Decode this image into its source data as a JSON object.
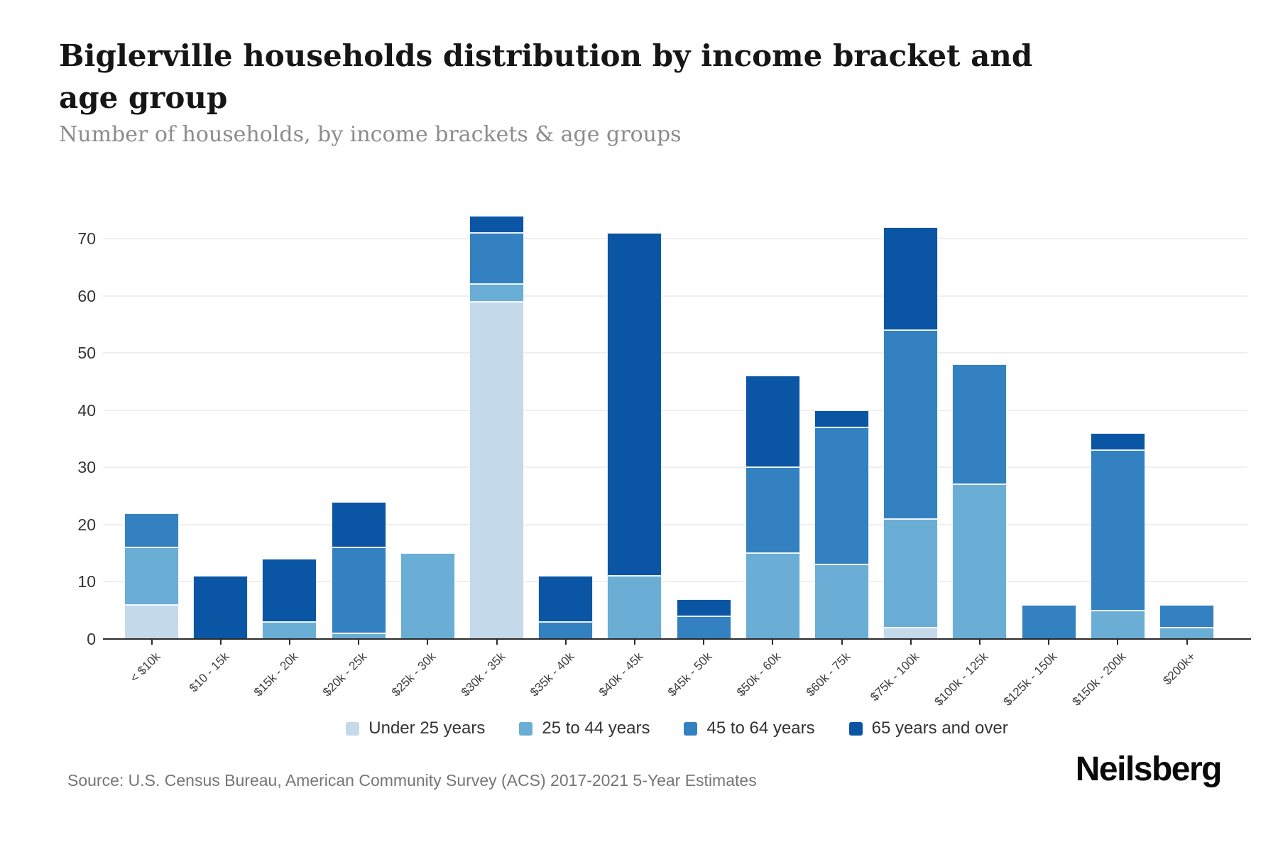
{
  "header": {
    "title": "Biglerville households distribution by income bracket and age group",
    "subtitle": "Number of households, by income brackets & age groups"
  },
  "chart_data": {
    "type": "bar",
    "stacked": true,
    "title": "Biglerville households distribution by income bracket and age group",
    "subtitle": "Number of households, by income brackets & age groups",
    "categories": [
      "< $10k",
      "$10 - 15k",
      "$15k - 20k",
      "$20k - 25k",
      "$25k - 30k",
      "$30k - 35k",
      "$35k - 40k",
      "$40k - 45k",
      "$45k - 50k",
      "$50k - 60k",
      "$60k - 75k",
      "$75k - 100k",
      "$100k - 125k",
      "$125k - 150k",
      "$150k - 200k",
      "$200k+"
    ],
    "series": [
      {
        "name": "Under 25 years",
        "color": "#c4d9e9",
        "values": [
          6,
          0,
          0,
          0,
          0,
          59,
          0,
          0,
          0,
          0,
          0,
          2,
          0,
          0,
          0,
          0
        ]
      },
      {
        "name": "25 to 44 years",
        "color": "#6aaed6",
        "values": [
          10,
          0,
          3,
          1,
          15,
          3,
          0,
          11,
          0,
          15,
          13,
          19,
          27,
          0,
          5,
          2
        ]
      },
      {
        "name": "45 to 64 years",
        "color": "#3381c1",
        "values": [
          6,
          0,
          0,
          15,
          0,
          9,
          3,
          0,
          4,
          15,
          24,
          33,
          21,
          6,
          28,
          4
        ]
      },
      {
        "name": "65 years and over",
        "color": "#0b56a4",
        "values": [
          0,
          11,
          11,
          8,
          0,
          3,
          8,
          60,
          3,
          16,
          3,
          18,
          0,
          0,
          3,
          0
        ]
      }
    ],
    "totals": [
      22,
      11,
      14,
      24,
      15,
      74,
      11,
      71,
      7,
      46,
      40,
      72,
      48,
      6,
      36,
      6
    ],
    "xlabel": "",
    "ylabel": "",
    "yticks": [
      0,
      10,
      20,
      30,
      40,
      50,
      60,
      70
    ],
    "ylim": [
      0,
      74.5
    ],
    "grid": true,
    "legend_position": "bottom"
  },
  "footer": {
    "source": "Source: U.S. Census Bureau, American Community Survey (ACS) 2017-2021 5-Year Estimates",
    "brand": "Neilsberg"
  }
}
